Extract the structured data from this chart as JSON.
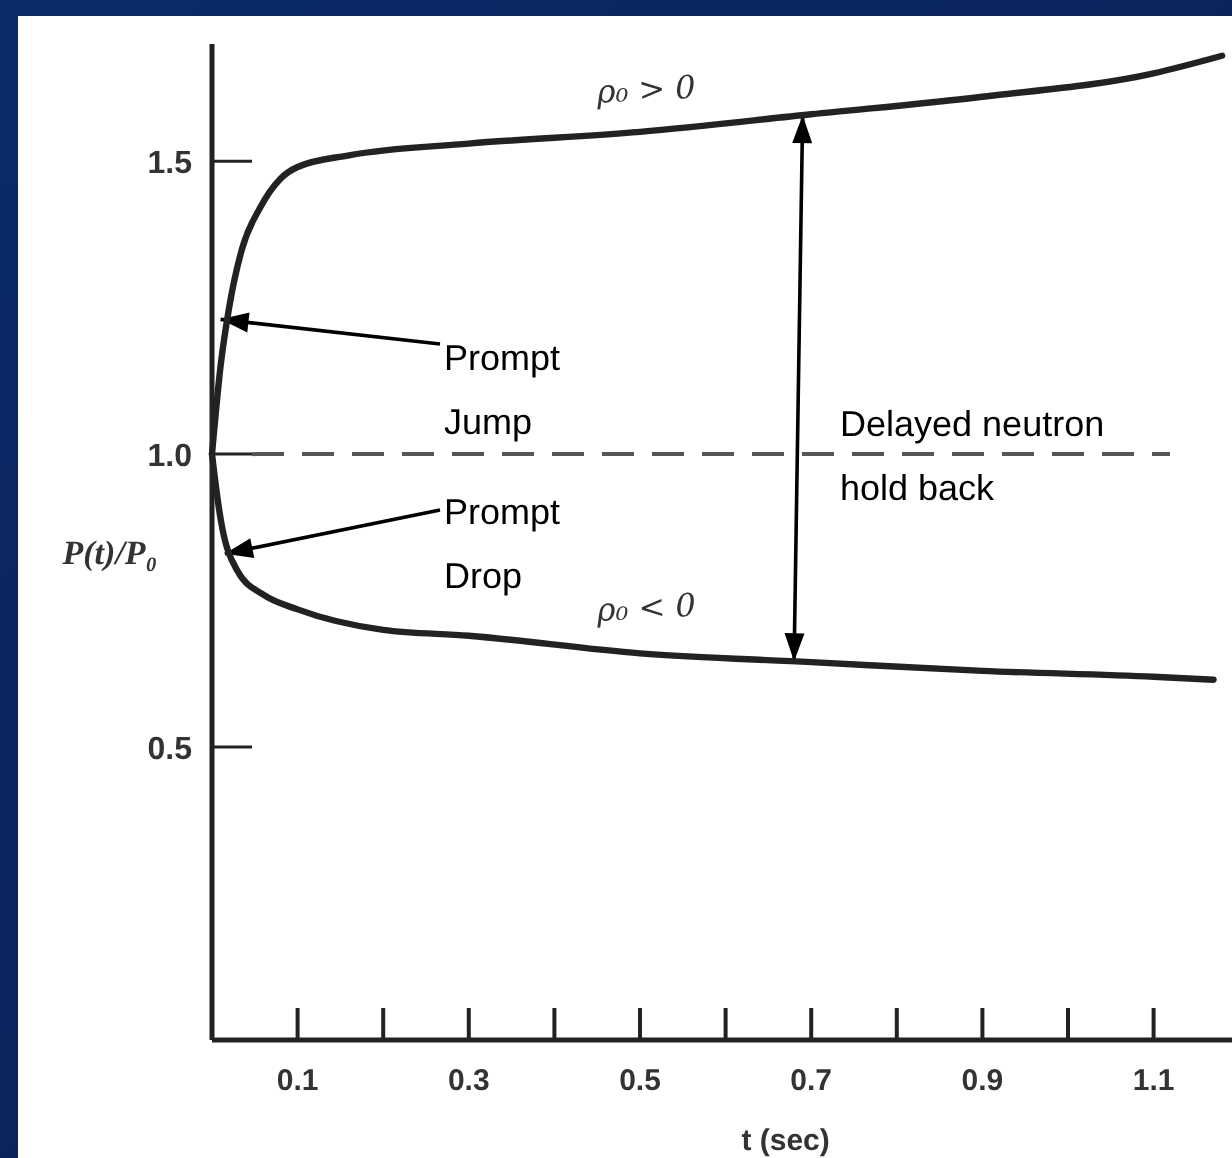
{
  "chart_data": {
    "type": "line",
    "xlabel": "t (sec)",
    "ylabel": "P(t)/P₀",
    "xlim": [
      0,
      1.2
    ],
    "ylim": [
      0,
      1.7
    ],
    "xticks": [
      0.1,
      {
        "value": 0.2,
        "label": null
      },
      0.3,
      {
        "value": 0.4,
        "label": null
      },
      0.5,
      {
        "value": 0.6,
        "label": null
      },
      0.7,
      {
        "value": 0.8,
        "label": null
      },
      0.9,
      {
        "value": 1.0,
        "label": null
      },
      1.1
    ],
    "yticks": [
      0.5,
      {
        "value": 1.0,
        "label": "1.0"
      },
      1.5
    ],
    "grid": false,
    "marker": "none",
    "line_style": "solid",
    "series": [
      {
        "name": "ρ₀ > 0",
        "color": "#222222",
        "x": [
          0,
          0.01,
          0.02,
          0.035,
          0.056,
          0.08,
          0.1,
          0.16,
          0.3,
          0.5,
          0.7,
          0.9,
          1.1,
          1.18
        ],
        "values": [
          1.0,
          1.15,
          1.25,
          1.35,
          1.42,
          1.47,
          1.49,
          1.51,
          1.53,
          1.55,
          1.58,
          1.61,
          1.65,
          1.68
        ]
      },
      {
        "name": "ρ₀ < 0",
        "color": "#222222",
        "x": [
          0,
          0.005,
          0.01,
          0.03,
          0.06,
          0.1,
          0.2,
          0.3,
          0.5,
          0.7,
          0.9,
          1.1,
          1.17
        ],
        "values": [
          1.0,
          0.94,
          0.89,
          0.8,
          0.76,
          0.735,
          0.7,
          0.69,
          0.66,
          0.645,
          0.63,
          0.62,
          0.615
        ]
      }
    ],
    "ref_lines": [
      {
        "axis": "y",
        "value": 1.0,
        "label": null,
        "color": "#555555",
        "line_style": "dashed"
      }
    ],
    "annotations": [
      {
        "text": "Prompt\nJump",
        "x": 0.01,
        "y": 1.23
      },
      {
        "text": "Prompt\nDrop",
        "x": 0.015,
        "y": 0.83
      },
      "Delayed neutron\nhold back"
    ]
  }
}
